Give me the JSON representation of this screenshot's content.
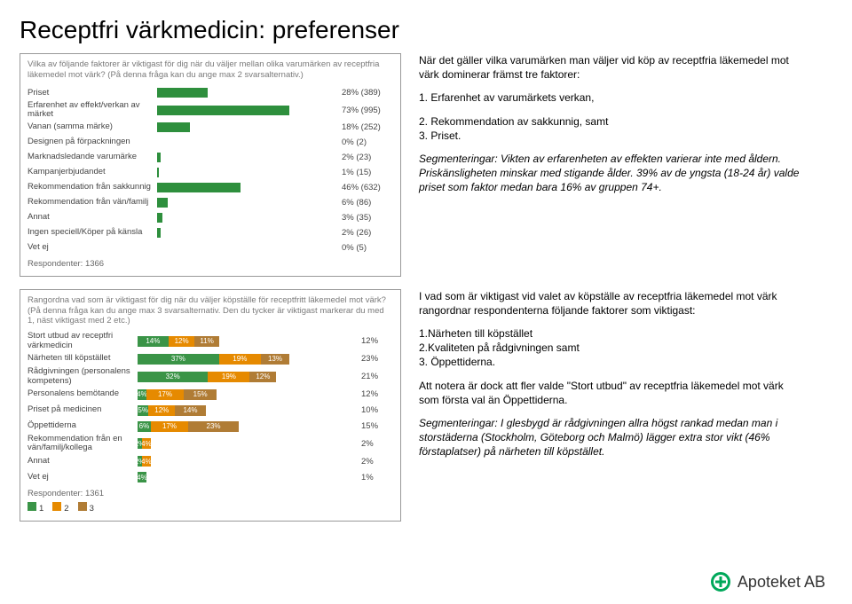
{
  "page_title": "Receptfri värkmedicin: preferenser",
  "colors": {
    "bar1": "#2e8f3d",
    "seg1": "#3a9447",
    "seg2": "#e68a00",
    "seg3": "#b07c35",
    "text_muted": "#7a7a7a",
    "panel_border": "#999999"
  },
  "chart1": {
    "question": "Vilka av följande faktorer är viktigast för dig när du väljer mellan olika varumärken av receptfria läkemedel mot värk?   (På denna fråga kan du ange max 2 svarsalternativ.)",
    "max_pct": 100,
    "rows": [
      {
        "label": "Priset",
        "pct": 28,
        "n": 389,
        "value_text": "28% (389)"
      },
      {
        "label": "Erfarenhet av effekt/verkan av märket",
        "pct": 73,
        "n": 995,
        "value_text": "73% (995)"
      },
      {
        "label": "Vanan (samma märke)",
        "pct": 18,
        "n": 252,
        "value_text": "18% (252)"
      },
      {
        "label": "Designen på förpackningen",
        "pct": 0,
        "n": 2,
        "value_text": "0% (2)"
      },
      {
        "label": "Marknadsledande varumärke",
        "pct": 2,
        "n": 23,
        "value_text": "2% (23)"
      },
      {
        "label": "Kampanjerbjudandet",
        "pct": 1,
        "n": 15,
        "value_text": "1% (15)"
      },
      {
        "label": "Rekommendation från sakkunnig",
        "pct": 46,
        "n": 632,
        "value_text": "46% (632)"
      },
      {
        "label": "Rekommendation från vän/familj",
        "pct": 6,
        "n": 86,
        "value_text": "6% (86)"
      },
      {
        "label": "Annat",
        "pct": 3,
        "n": 35,
        "value_text": "3% (35)"
      },
      {
        "label": "Ingen speciell/Köper på känsla",
        "pct": 2,
        "n": 26,
        "value_text": "2% (26)"
      },
      {
        "label": "Vet ej",
        "pct": 0,
        "n": 5,
        "value_text": "0% (5)"
      }
    ],
    "respondents_label": "Respondenter: 1366"
  },
  "chart2": {
    "question": "Rangordna vad som är viktigast för dig när du väljer köpställe för receptfritt läkemedel mot värk? (På denna fråga kan du ange max 3 svarsalternativ. Den du tycker är viktigast markerar du med 1, näst viktigast med 2 etc.)",
    "legend": [
      "1",
      "2",
      "3"
    ],
    "seg_colors": [
      "#3a9447",
      "#e68a00",
      "#b07c35"
    ],
    "scale": 100,
    "rows": [
      {
        "label": "Stort utbud av receptfri värkmedicin",
        "segs": [
          14,
          12,
          11
        ],
        "total": "12%"
      },
      {
        "label": "Närheten till köpstället",
        "segs": [
          37,
          19,
          13
        ],
        "total": "23%"
      },
      {
        "label": "Rådgivningen (personalens kompetens)",
        "segs": [
          32,
          19,
          12
        ],
        "total": "21%"
      },
      {
        "label": "Personalens bemötande",
        "segs": [
          4,
          17,
          15
        ],
        "total": "12%"
      },
      {
        "label": "Priset på medicinen",
        "segs": [
          5,
          12,
          14
        ],
        "total": "10%"
      },
      {
        "label": "Öppettiderna",
        "segs": [
          6,
          17,
          23
        ],
        "total": "15%"
      },
      {
        "label": "Rekommendation från en vän/familj/kollega",
        "segs": [
          2,
          4,
          0
        ],
        "total": "2%"
      },
      {
        "label": "Annat",
        "segs": [
          2,
          4,
          0
        ],
        "total": "2%"
      },
      {
        "label": "Vet ej",
        "segs": [
          4,
          0,
          0
        ],
        "total": "1%"
      }
    ],
    "respondents_label": "Respondenter: 1361"
  },
  "text_block1": {
    "p1": "När det gäller vilka varumärken man väljer vid köp av receptfria läkemedel mot värk dominerar främst tre faktorer:",
    "list": [
      "1. Erfarenhet av varumärkets verkan,",
      "2. Rekommendation av sakkunnig, samt",
      "3. Priset."
    ],
    "p2_prefix": "Segmenteringar:",
    "p2_rest": " Vikten av erfarenheten av effekten varierar inte med åldern. Priskänsligheten minskar med stigande ålder. 39% av de yngsta (18-24 år) valde priset som faktor medan bara 16% av gruppen 74+."
  },
  "text_block2": {
    "p1": "I vad som är viktigast vid valet av köpställe av receptfria läkemedel mot värk rangordnar respondenterna följande faktorer som viktigast:",
    "list": [
      "1.Närheten till köpstället",
      "2.Kvaliteten på rådgivningen samt",
      "3.   Öppettiderna."
    ],
    "p2": "Att notera är dock att fler valde \"Stort utbud\" av receptfria läkemedel mot värk som första val än Öppettiderna.",
    "p3_prefix": "Segmenteringar:",
    "p3_rest": " I glesbygd är rådgivningen allra högst rankad medan man i storstäderna (Stockholm, Göteborg och Malmö) lägger extra stor vikt (46% förstaplatser) på närheten till köpstället."
  },
  "logo_text": "Apoteket AB"
}
